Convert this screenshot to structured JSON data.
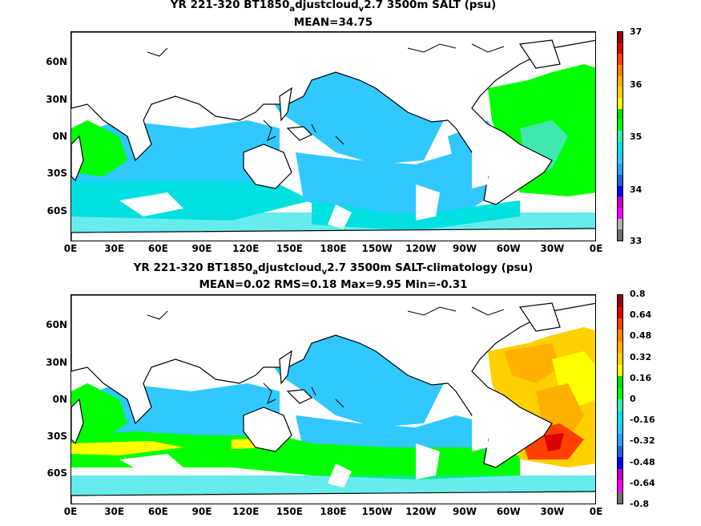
{
  "panels": [
    {
      "title_prefix": "YR 221-320 BT1850",
      "title_sub_a": "a",
      "title_mid": "djustcloud",
      "title_sub_v": "v",
      "title_suffix": "2.7 3500m SALT (psu)",
      "stats": "MEAN=34.75",
      "lat_labels": [
        "60N",
        "30N",
        "0N",
        "30S",
        "60S"
      ],
      "lon_labels": [
        "0E",
        "30E",
        "60E",
        "90E",
        "120E",
        "150E",
        "180E",
        "150W",
        "120W",
        "90W",
        "60W",
        "30W",
        "0E"
      ],
      "colorbar_labels": [
        "37",
        "36",
        "35",
        "34",
        "33"
      ],
      "colorbar_colors": [
        "#707070",
        "#b0b0b0",
        "#ff00ff",
        "#c000c0",
        "#0000ff",
        "#2060e0",
        "#2aa0ff",
        "#30c8ff",
        "#00e0e0",
        "#40e8b0",
        "#00ff00",
        "#00dd00",
        "#ffff00",
        "#ffd000",
        "#ffb000",
        "#ff8000",
        "#ff4000",
        "#dd0000",
        "#990000"
      ]
    },
    {
      "title_prefix": "YR 221-320 BT1850",
      "title_sub_a": "a",
      "title_mid": "djustcloud",
      "title_sub_v": "v",
      "title_suffix": "2.7 3500m SALT-climatology (psu)",
      "stats": "MEAN=0.02   RMS=0.18   Max=9.95   Min=-0.31",
      "lat_labels": [
        "60N",
        "30N",
        "0N",
        "30S",
        "60S"
      ],
      "lon_labels": [
        "0E",
        "30E",
        "60E",
        "90E",
        "120E",
        "150E",
        "180E",
        "150W",
        "120W",
        "90W",
        "60W",
        "30W",
        "0E"
      ],
      "colorbar_labels": [
        "0.8",
        "0.64",
        "0.48",
        "0.32",
        "0.16",
        "0",
        "-0.16",
        "-0.32",
        "-0.48",
        "-0.64",
        "-0.8"
      ],
      "colorbar_colors": [
        "#707070",
        "#ff00ff",
        "#c000c0",
        "#0000ff",
        "#2060e0",
        "#2aa0ff",
        "#30c8ff",
        "#00e0e0",
        "#40e8b0",
        "#00ff00",
        "#00dd00",
        "#ffff00",
        "#ffd000",
        "#ffb000",
        "#ff8000",
        "#ff4000",
        "#dd0000",
        "#990000"
      ]
    }
  ],
  "colors": {
    "fresh": "#30c8ff",
    "mid": "#00e0e0",
    "salty": "#00ff00",
    "warm_anom": "#ffb000",
    "hot_anom": "#ff4000",
    "yellow": "#ffff00",
    "land": "#ffffff"
  }
}
